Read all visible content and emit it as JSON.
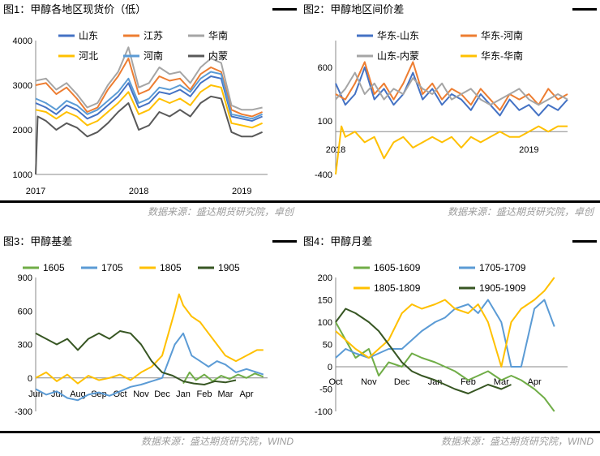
{
  "source_top": "数据来源：盛达期货研究院，卓创",
  "source_bottom": "数据来源：盛达期货研究院，WIND",
  "chart_data": [
    {
      "type": "line",
      "title": "图1：甲醇各地区现货价（低）",
      "ylim": [
        1000,
        4000
      ],
      "yticks": [
        1000,
        2000,
        3000,
        4000
      ],
      "xticks": [
        {
          "label": "2017",
          "x": 0
        },
        {
          "label": "2018",
          "x": 1
        },
        {
          "label": "2019",
          "x": 2
        }
      ],
      "xlim": [
        0,
        2.25
      ],
      "legend_position": "top",
      "series": [
        {
          "name": "山东",
          "color": "#4472C4",
          "x": [
            0,
            0.1,
            0.2,
            0.3,
            0.4,
            0.5,
            0.6,
            0.7,
            0.8,
            0.9,
            1.0,
            1.1,
            1.2,
            1.3,
            1.4,
            1.5,
            1.6,
            1.7,
            1.8,
            1.9,
            2.0,
            2.1,
            2.2
          ],
          "values": [
            2600,
            2500,
            2350,
            2550,
            2450,
            2250,
            2350,
            2550,
            2750,
            3050,
            2500,
            2600,
            2850,
            2800,
            2900,
            2750,
            3050,
            3200,
            3150,
            2300,
            2250,
            2200,
            2300
          ]
        },
        {
          "name": "江苏",
          "color": "#ED7D31",
          "x": [
            0,
            0.1,
            0.2,
            0.3,
            0.4,
            0.5,
            0.6,
            0.7,
            0.8,
            0.9,
            1.0,
            1.1,
            1.2,
            1.3,
            1.4,
            1.5,
            1.6,
            1.7,
            1.8,
            1.9,
            2.0,
            2.1,
            2.2
          ],
          "values": [
            3000,
            3050,
            2800,
            2950,
            2700,
            2400,
            2500,
            2900,
            3200,
            3600,
            2800,
            2900,
            3200,
            3100,
            3150,
            2900,
            3250,
            3400,
            3300,
            2450,
            2350,
            2300,
            2400
          ]
        },
        {
          "name": "华南",
          "color": "#A5A5A5",
          "x": [
            0,
            0.1,
            0.2,
            0.3,
            0.4,
            0.5,
            0.6,
            0.7,
            0.8,
            0.9,
            1.0,
            1.1,
            1.2,
            1.3,
            1.4,
            1.5,
            1.6,
            1.7,
            1.8,
            1.9,
            2.0,
            2.1,
            2.2
          ],
          "values": [
            3100,
            3150,
            2900,
            3050,
            2800,
            2500,
            2600,
            3000,
            3300,
            3850,
            2950,
            3050,
            3400,
            3250,
            3300,
            3050,
            3400,
            3600,
            3500,
            2550,
            2450,
            2450,
            2500
          ]
        },
        {
          "name": "河北",
          "color": "#FFC000",
          "x": [
            0,
            0.1,
            0.2,
            0.3,
            0.4,
            0.5,
            0.6,
            0.7,
            0.8,
            0.9,
            1.0,
            1.1,
            1.2,
            1.3,
            1.4,
            1.5,
            1.6,
            1.7,
            1.8,
            1.9,
            2.0,
            2.1,
            2.2
          ],
          "values": [
            2450,
            2400,
            2250,
            2400,
            2300,
            2100,
            2200,
            2400,
            2600,
            2850,
            2350,
            2450,
            2700,
            2600,
            2700,
            2550,
            2850,
            3000,
            2950,
            2150,
            2100,
            2050,
            2150
          ]
        },
        {
          "name": "河南",
          "color": "#5B9BD5",
          "x": [
            0,
            0.1,
            0.2,
            0.3,
            0.4,
            0.5,
            0.6,
            0.7,
            0.8,
            0.9,
            1.0,
            1.1,
            1.2,
            1.3,
            1.4,
            1.5,
            1.6,
            1.7,
            1.8,
            1.9,
            2.0,
            2.1,
            2.2
          ],
          "values": [
            2700,
            2600,
            2450,
            2650,
            2550,
            2350,
            2450,
            2650,
            2850,
            3150,
            2600,
            2700,
            2950,
            2900,
            3000,
            2850,
            3150,
            3300,
            3250,
            2350,
            2300,
            2250,
            2350
          ]
        },
        {
          "name": "内蒙",
          "color": "#595959",
          "x": [
            0,
            0.02,
            0.1,
            0.2,
            0.3,
            0.4,
            0.5,
            0.6,
            0.7,
            0.8,
            0.9,
            1.0,
            1.1,
            1.2,
            1.3,
            1.4,
            1.5,
            1.6,
            1.7,
            1.8,
            1.9,
            2.0,
            2.1,
            2.2
          ],
          "values": [
            1000,
            2300,
            2200,
            2000,
            2150,
            2050,
            1850,
            1950,
            2150,
            2400,
            2600,
            2000,
            2100,
            2400,
            2300,
            2450,
            2300,
            2600,
            2750,
            2700,
            1950,
            1850,
            1850,
            1950
          ]
        }
      ]
    },
    {
      "type": "line",
      "title": "图2：甲醇地区间价差",
      "ylim": [
        -400,
        850
      ],
      "yticks": [
        -400,
        100,
        600
      ],
      "xticks": [
        {
          "label": "2018",
          "x": 0
        },
        {
          "label": "2019",
          "x": 1
        }
      ],
      "xlim": [
        0,
        1.2
      ],
      "legend_position": "top",
      "series": [
        {
          "name": "华东-山东",
          "color": "#4472C4",
          "x": [
            0,
            0.05,
            0.1,
            0.15,
            0.2,
            0.25,
            0.3,
            0.35,
            0.4,
            0.45,
            0.5,
            0.55,
            0.6,
            0.65,
            0.7,
            0.75,
            0.8,
            0.85,
            0.9,
            0.95,
            1.0,
            1.05,
            1.1,
            1.15,
            1.2
          ],
          "values": [
            450,
            250,
            350,
            600,
            300,
            400,
            250,
            350,
            550,
            300,
            400,
            250,
            350,
            300,
            200,
            350,
            250,
            150,
            300,
            200,
            250,
            150,
            250,
            200,
            300
          ]
        },
        {
          "name": "华东-河南",
          "color": "#ED7D31",
          "x": [
            0,
            0.05,
            0.1,
            0.15,
            0.2,
            0.25,
            0.3,
            0.35,
            0.4,
            0.45,
            0.5,
            0.55,
            0.6,
            0.65,
            0.7,
            0.75,
            0.8,
            0.85,
            0.9,
            0.95,
            1.0,
            1.05,
            1.1,
            1.15,
            1.2
          ],
          "values": [
            350,
            300,
            450,
            650,
            350,
            450,
            300,
            450,
            650,
            350,
            450,
            300,
            400,
            350,
            250,
            400,
            300,
            200,
            350,
            300,
            350,
            250,
            400,
            300,
            350
          ]
        },
        {
          "name": "山东-内蒙",
          "color": "#A5A5A5",
          "x": [
            0,
            0.05,
            0.1,
            0.15,
            0.2,
            0.25,
            0.3,
            0.35,
            0.4,
            0.45,
            0.5,
            0.55,
            0.6,
            0.65,
            0.7,
            0.75,
            0.8,
            0.85,
            0.9,
            0.95,
            1.0,
            1.05,
            1.1,
            1.15,
            1.2
          ],
          "values": [
            300,
            400,
            550,
            350,
            450,
            300,
            400,
            350,
            500,
            400,
            350,
            450,
            300,
            350,
            400,
            300,
            250,
            300,
            350,
            400,
            300,
            250,
            300,
            350,
            300
          ]
        },
        {
          "name": "华东-华南",
          "color": "#FFC000",
          "x": [
            0,
            0.03,
            0.05,
            0.1,
            0.15,
            0.2,
            0.25,
            0.3,
            0.35,
            0.4,
            0.45,
            0.5,
            0.55,
            0.6,
            0.65,
            0.7,
            0.75,
            0.8,
            0.85,
            0.9,
            0.95,
            1.0,
            1.05,
            1.1,
            1.15,
            1.2
          ],
          "values": [
            -400,
            50,
            -50,
            0,
            -100,
            -50,
            -250,
            -100,
            -50,
            -150,
            -100,
            -50,
            -100,
            -50,
            -150,
            -50,
            -100,
            -50,
            0,
            -50,
            -50,
            0,
            50,
            0,
            50,
            50
          ]
        }
      ]
    },
    {
      "type": "line",
      "title": "图3：甲醇基差",
      "ylim": [
        -300,
        900
      ],
      "yticks": [
        -300,
        0,
        300,
        600,
        900
      ],
      "xticks": [
        {
          "label": "Jun",
          "x": 0
        },
        {
          "label": "Jul",
          "x": 1
        },
        {
          "label": "Aug",
          "x": 2
        },
        {
          "label": "Sep",
          "x": 3
        },
        {
          "label": "Oct",
          "x": 4
        },
        {
          "label": "Nov",
          "x": 5
        },
        {
          "label": "Dec",
          "x": 6
        },
        {
          "label": "Jan",
          "x": 7
        },
        {
          "label": "Feb",
          "x": 8
        },
        {
          "label": "Mar",
          "x": 9
        },
        {
          "label": "Apr",
          "x": 10
        }
      ],
      "xlim": [
        0,
        11
      ],
      "legend_position": "top",
      "series": [
        {
          "name": "1605",
          "color": "#70AD47",
          "x": [
            7,
            7.3,
            7.6,
            8,
            8.4,
            8.8,
            9.2,
            9.6,
            10,
            10.4,
            10.8
          ],
          "values": [
            -50,
            50,
            -20,
            30,
            -30,
            20,
            -10,
            30,
            0,
            40,
            10
          ]
        },
        {
          "name": "1705",
          "color": "#5B9BD5",
          "x": [
            0,
            0.5,
            1,
            1.5,
            2,
            2.5,
            3,
            3.5,
            4,
            4.5,
            5,
            5.5,
            6,
            6.3,
            6.6,
            7,
            7.4,
            7.8,
            8.2,
            8.6,
            9,
            9.5,
            10,
            10.5,
            10.8
          ],
          "values": [
            -100,
            -150,
            -120,
            -180,
            -200,
            -150,
            -130,
            -160,
            -120,
            -80,
            -60,
            -30,
            0,
            150,
            300,
            400,
            200,
            150,
            100,
            150,
            120,
            50,
            80,
            50,
            30
          ]
        },
        {
          "name": "1805",
          "color": "#FFC000",
          "x": [
            0,
            0.5,
            1,
            1.5,
            2,
            2.5,
            3,
            3.5,
            4,
            4.5,
            5,
            5.5,
            6,
            6.3,
            6.6,
            6.8,
            7,
            7.4,
            7.8,
            8.2,
            8.6,
            9,
            9.5,
            10,
            10.5,
            10.8
          ],
          "values": [
            0,
            50,
            -30,
            30,
            -50,
            20,
            -20,
            0,
            30,
            -20,
            50,
            100,
            200,
            400,
            600,
            750,
            650,
            550,
            500,
            400,
            300,
            200,
            150,
            200,
            250,
            250
          ]
        },
        {
          "name": "1905",
          "color": "#375623",
          "x": [
            0,
            0.5,
            1,
            1.5,
            2,
            2.5,
            3,
            3.5,
            4,
            4.5,
            5,
            5.5,
            6,
            6.5,
            7,
            7.5,
            8,
            8.5,
            9,
            9.5
          ],
          "values": [
            400,
            350,
            300,
            350,
            250,
            350,
            400,
            350,
            420,
            400,
            300,
            150,
            50,
            20,
            -30,
            -50,
            -60,
            -30,
            -40,
            -20
          ]
        }
      ]
    },
    {
      "type": "line",
      "title": "图4：甲醇月差",
      "ylim": [
        -100,
        200
      ],
      "yticks": [
        -100,
        -50,
        0,
        50,
        100,
        150,
        200
      ],
      "xticks": [
        {
          "label": "Oct",
          "x": 0
        },
        {
          "label": "Nov",
          "x": 1
        },
        {
          "label": "Dec",
          "x": 2
        },
        {
          "label": "Jan",
          "x": 3
        },
        {
          "label": "Feb",
          "x": 4
        },
        {
          "label": "Mar",
          "x": 5
        },
        {
          "label": "Apr",
          "x": 6
        }
      ],
      "xlim": [
        0,
        7
      ],
      "legend_position": "top",
      "series": [
        {
          "name": "1605-1609",
          "color": "#70AD47",
          "x": [
            0,
            0.3,
            0.6,
            1,
            1.3,
            1.6,
            2,
            2.3,
            2.6,
            3,
            3.3,
            3.6,
            4,
            4.3,
            4.6,
            5,
            5.3,
            5.6,
            6,
            6.3,
            6.6
          ],
          "values": [
            100,
            60,
            20,
            40,
            -20,
            10,
            0,
            30,
            20,
            10,
            0,
            -10,
            -30,
            -20,
            -10,
            -30,
            -20,
            -30,
            -50,
            -70,
            -100
          ]
        },
        {
          "name": "1705-1709",
          "color": "#5B9BD5",
          "x": [
            0,
            0.3,
            0.6,
            1,
            1.3,
            1.6,
            2,
            2.3,
            2.6,
            3,
            3.3,
            3.6,
            4,
            4.3,
            4.6,
            5,
            5.3,
            5.6,
            6,
            6.3,
            6.6
          ],
          "values": [
            20,
            40,
            30,
            20,
            30,
            40,
            40,
            60,
            80,
            100,
            110,
            130,
            140,
            120,
            150,
            100,
            0,
            0,
            130,
            150,
            90
          ]
        },
        {
          "name": "1805-1809",
          "color": "#FFC000",
          "x": [
            0,
            0.3,
            0.6,
            1,
            1.3,
            1.6,
            2,
            2.3,
            2.6,
            3,
            3.3,
            3.6,
            4,
            4.3,
            4.6,
            5,
            5.3,
            5.6,
            6,
            6.3,
            6.6
          ],
          "values": [
            80,
            60,
            40,
            20,
            40,
            60,
            120,
            140,
            130,
            140,
            150,
            130,
            120,
            140,
            100,
            0,
            100,
            130,
            150,
            170,
            200
          ]
        },
        {
          "name": "1905-1909",
          "color": "#375623",
          "x": [
            0,
            0.3,
            0.6,
            1,
            1.3,
            1.6,
            2,
            2.3,
            2.6,
            3,
            3.3,
            3.6,
            4,
            4.3,
            4.6,
            5,
            5.3
          ],
          "values": [
            100,
            130,
            120,
            100,
            80,
            50,
            10,
            -10,
            -20,
            -30,
            -40,
            -50,
            -60,
            -50,
            -40,
            -50,
            -40
          ]
        }
      ]
    }
  ]
}
